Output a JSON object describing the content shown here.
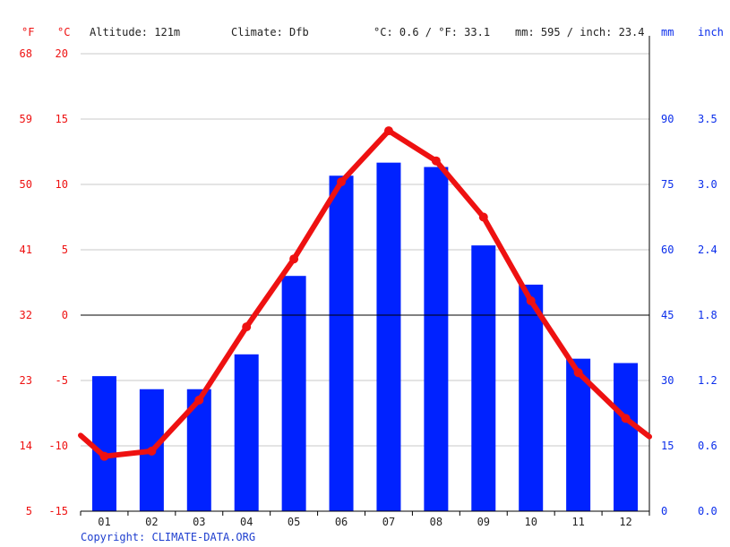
{
  "header": {
    "altitude": "Altitude: 121m",
    "climate": "Climate: Dfb",
    "temp_avg": "°C: 0.6 / °F: 33.1",
    "precip_total": "mm: 595 / inch: 23.4",
    "unit_f": "°F",
    "unit_c": "°C",
    "unit_mm": "mm",
    "unit_inch": "inch"
  },
  "copyright": "Copyright: CLIMATE-DATA.ORG",
  "colors": {
    "temperature": "#ee1111",
    "precipitation": "#0022ff",
    "grid": "#c8c8c8",
    "axis": "#000000"
  },
  "chart_data": {
    "type": "bar",
    "categories": [
      "01",
      "02",
      "03",
      "04",
      "05",
      "06",
      "07",
      "08",
      "09",
      "10",
      "11",
      "12"
    ],
    "series": [
      {
        "unit": "mm",
        "kind": "bar",
        "axis": "right",
        "values": [
          31,
          28,
          28,
          36,
          54,
          77,
          80,
          79,
          61,
          52,
          35,
          34
        ]
      },
      {
        "unit": "°C",
        "kind": "line",
        "axis": "left",
        "values": [
          -10.8,
          -10.4,
          -6.5,
          -0.9,
          4.3,
          10.2,
          14.1,
          11.8,
          7.5,
          1.1,
          -4.4,
          -7.9
        ]
      }
    ],
    "line_edge_values": [
      -9.2,
      -9.3
    ],
    "ylim_left_c": [
      -15,
      20
    ],
    "yticks_left_c": [
      "-15",
      "-10",
      "-5",
      "0",
      "5",
      "10",
      "15",
      "20"
    ],
    "yticks_left_f": [
      "5",
      "14",
      "23",
      "32",
      "41",
      "50",
      "59",
      "68"
    ],
    "ylim_right_mm": [
      0,
      105
    ],
    "yticks_right_mm": [
      "0",
      "15",
      "30",
      "45",
      "60",
      "75",
      "90"
    ],
    "yticks_right_inch": [
      "0.0",
      "0.6",
      "1.2",
      "1.8",
      "2.4",
      "3.0",
      "3.5"
    ],
    "grid": true
  }
}
